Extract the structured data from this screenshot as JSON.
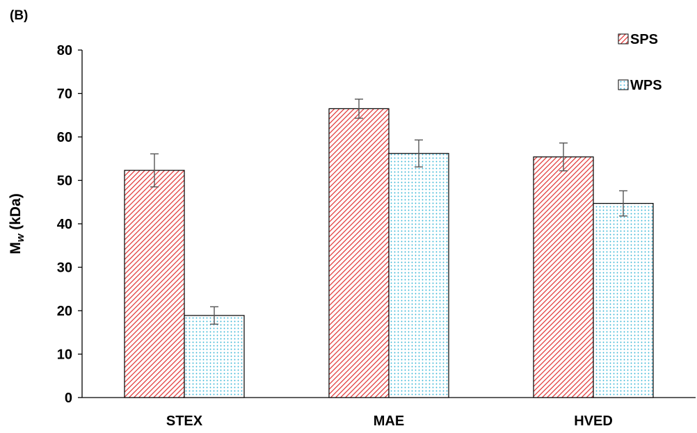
{
  "panel_label": "(B)",
  "chart_data": {
    "type": "bar",
    "title": "",
    "xlabel": "",
    "ylabel": {
      "main": "M",
      "sub": "w",
      "rest": " (kDa)"
    },
    "ylim": [
      0,
      80
    ],
    "yticks": [
      0,
      10,
      20,
      30,
      40,
      50,
      60,
      70,
      80
    ],
    "grid": false,
    "legend_position": "top-right",
    "categories": [
      "STEX",
      "MAE",
      "HVED"
    ],
    "series": [
      {
        "name": "SPS",
        "values": [
          52.3,
          66.5,
          55.4
        ],
        "errors": [
          3.8,
          2.2,
          3.2
        ],
        "color": "#e03030",
        "pattern": "diagonal-hatch"
      },
      {
        "name": "WPS",
        "values": [
          18.9,
          56.2,
          44.7
        ],
        "errors": [
          2.0,
          3.1,
          2.9
        ],
        "color": "#38b6d6",
        "pattern": "dots"
      }
    ]
  }
}
